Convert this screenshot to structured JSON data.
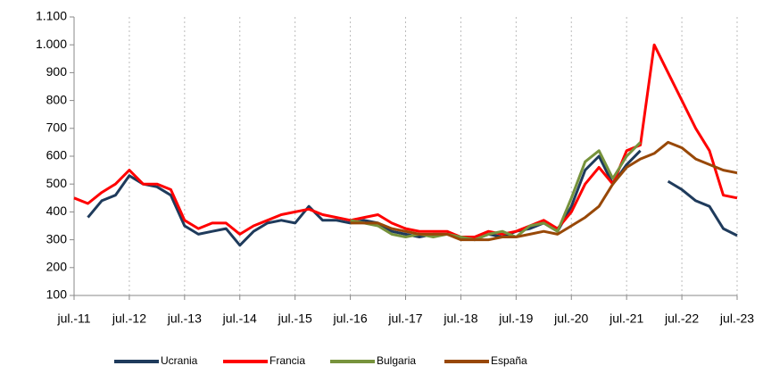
{
  "chart_data": {
    "type": "line",
    "categories": [
      "jul.-11",
      null,
      null,
      null,
      "jul.-12",
      null,
      null,
      null,
      "jul.-13",
      null,
      null,
      null,
      "jul.-14",
      null,
      null,
      null,
      "jul.-15",
      null,
      null,
      null,
      "jul.-16",
      null,
      null,
      null,
      "jul.-17",
      null,
      null,
      null,
      "jul.-18",
      null,
      null,
      null,
      "jul.-19",
      null,
      null,
      null,
      "jul.-20",
      null,
      null,
      null,
      "jul.-21",
      null,
      null,
      null,
      "jul.-22",
      null,
      null,
      null,
      "jul.-23"
    ],
    "series": [
      {
        "name": "Ucrania",
        "color": "#1f3b5c",
        "values": [
          null,
          380,
          440,
          460,
          530,
          500,
          490,
          460,
          350,
          320,
          330,
          340,
          280,
          330,
          360,
          370,
          360,
          420,
          370,
          370,
          360,
          370,
          360,
          330,
          320,
          310,
          320,
          320,
          310,
          300,
          320,
          310,
          330,
          340,
          360,
          330,
          420,
          550,
          600,
          500,
          570,
          620,
          null,
          510,
          480,
          440,
          420,
          340,
          315
        ]
      },
      {
        "name": "Francia",
        "color": "#ff0000",
        "values": [
          450,
          430,
          470,
          500,
          550,
          500,
          500,
          480,
          370,
          340,
          360,
          360,
          320,
          350,
          370,
          390,
          400,
          410,
          390,
          380,
          370,
          380,
          390,
          360,
          340,
          330,
          330,
          330,
          310,
          310,
          330,
          320,
          330,
          350,
          370,
          340,
          400,
          500,
          560,
          500,
          620,
          640,
          1000,
          900,
          800,
          700,
          620,
          460,
          450
        ]
      },
      {
        "name": "Bulgaria",
        "color": "#77933c",
        "values": [
          null,
          null,
          null,
          null,
          null,
          null,
          null,
          null,
          null,
          null,
          null,
          null,
          null,
          null,
          null,
          null,
          null,
          null,
          null,
          null,
          370,
          360,
          350,
          320,
          310,
          320,
          310,
          320,
          310,
          300,
          320,
          330,
          310,
          350,
          360,
          330,
          450,
          580,
          620,
          520,
          600,
          650,
          null,
          null,
          null,
          null,
          null,
          null,
          null
        ]
      },
      {
        "name": "España",
        "color": "#984807",
        "values": [
          null,
          null,
          null,
          null,
          null,
          null,
          null,
          null,
          null,
          null,
          null,
          null,
          null,
          null,
          null,
          null,
          null,
          null,
          null,
          null,
          360,
          360,
          360,
          340,
          330,
          320,
          320,
          320,
          300,
          300,
          300,
          310,
          310,
          320,
          330,
          320,
          350,
          380,
          420,
          500,
          560,
          590,
          610,
          650,
          630,
          590,
          570,
          550,
          540
        ]
      }
    ],
    "ylim": [
      100,
      1100
    ],
    "yticks": [
      100,
      200,
      300,
      400,
      500,
      600,
      700,
      800,
      900,
      {
        "value": 1000,
        "label": "1.000"
      },
      {
        "value": 1100,
        "label": "1.100"
      }
    ],
    "grid": true,
    "legend": "bottom"
  }
}
